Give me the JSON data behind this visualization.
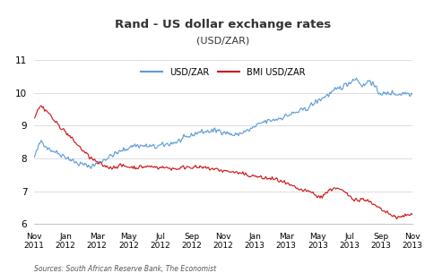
{
  "title": "Rand - US dollar exchange rates",
  "subtitle": "(USD/ZAR)",
  "source_text": "Sources: South African Reserve Bank, The Economist",
  "legend_labels": [
    "USD/ZAR",
    "BMI USD/ZAR"
  ],
  "line1_color": "#5b9bd5",
  "line2_color": "#cc1111",
  "background_color": "#ffffff",
  "ylim": [
    6,
    11
  ],
  "yticks": [
    6,
    7,
    8,
    9,
    10,
    11
  ],
  "xtick_labels": [
    "Nov\n2011",
    "Jan\n2012",
    "Mar\n2012",
    "May\n2012",
    "Jul\n2012",
    "Sep\n2012",
    "Nov\n2012",
    "Jan\n2013",
    "Mar\n2013",
    "May\n2013",
    "Jul\n2013",
    "Sep\n2013",
    "Nov\n2013"
  ]
}
